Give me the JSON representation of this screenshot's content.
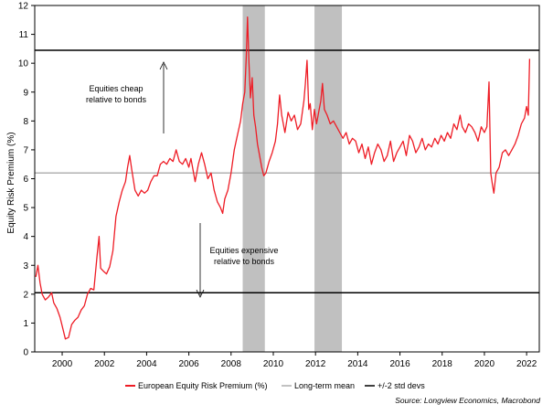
{
  "chart_data": {
    "type": "line",
    "ylabel": "Equity Risk Premium (%)",
    "xlabel": "",
    "xlim": [
      1998.7,
      2022.6
    ],
    "ylim": [
      0,
      12
    ],
    "yticks": [
      0,
      1,
      2,
      3,
      4,
      5,
      6,
      7,
      8,
      9,
      10,
      11,
      12
    ],
    "xticks": [
      "2000",
      "2002",
      "2004",
      "2006",
      "2008",
      "2010",
      "2012",
      "2014",
      "2016",
      "2018",
      "2020",
      "2022"
    ],
    "shaded_periods": [
      [
        2008.55,
        2009.6
      ],
      [
        2011.95,
        2013.25
      ]
    ],
    "reference_lines": {
      "long_term_mean": 6.2,
      "upper_2sd": 10.45,
      "lower_2sd": 2.05
    },
    "series": [
      {
        "name": "European Equity Risk Premium (%)",
        "color": "#ee1c25",
        "points": [
          [
            1998.75,
            2.6
          ],
          [
            1998.85,
            3.0
          ],
          [
            1998.95,
            2.4
          ],
          [
            1999.05,
            2.0
          ],
          [
            1999.2,
            1.8
          ],
          [
            1999.35,
            1.9
          ],
          [
            1999.5,
            2.05
          ],
          [
            1999.6,
            1.7
          ],
          [
            1999.75,
            1.5
          ],
          [
            1999.9,
            1.2
          ],
          [
            2000.05,
            0.75
          ],
          [
            2000.15,
            0.45
          ],
          [
            2000.3,
            0.5
          ],
          [
            2000.45,
            0.95
          ],
          [
            2000.6,
            1.1
          ],
          [
            2000.75,
            1.2
          ],
          [
            2000.9,
            1.45
          ],
          [
            2001.05,
            1.6
          ],
          [
            2001.2,
            2.0
          ],
          [
            2001.35,
            2.2
          ],
          [
            2001.5,
            2.15
          ],
          [
            2001.65,
            3.3
          ],
          [
            2001.75,
            4.0
          ],
          [
            2001.82,
            2.9
          ],
          [
            2001.95,
            2.8
          ],
          [
            2002.1,
            2.7
          ],
          [
            2002.25,
            2.95
          ],
          [
            2002.4,
            3.5
          ],
          [
            2002.55,
            4.7
          ],
          [
            2002.7,
            5.2
          ],
          [
            2002.85,
            5.6
          ],
          [
            2003.0,
            5.9
          ],
          [
            2003.1,
            6.4
          ],
          [
            2003.2,
            6.8
          ],
          [
            2003.3,
            6.3
          ],
          [
            2003.45,
            5.6
          ],
          [
            2003.6,
            5.4
          ],
          [
            2003.75,
            5.6
          ],
          [
            2003.9,
            5.5
          ],
          [
            2004.05,
            5.6
          ],
          [
            2004.2,
            5.9
          ],
          [
            2004.35,
            6.1
          ],
          [
            2004.5,
            6.1
          ],
          [
            2004.65,
            6.5
          ],
          [
            2004.8,
            6.6
          ],
          [
            2004.95,
            6.5
          ],
          [
            2005.1,
            6.7
          ],
          [
            2005.25,
            6.6
          ],
          [
            2005.4,
            7.0
          ],
          [
            2005.55,
            6.6
          ],
          [
            2005.7,
            6.5
          ],
          [
            2005.85,
            6.7
          ],
          [
            2006.0,
            6.4
          ],
          [
            2006.1,
            6.7
          ],
          [
            2006.2,
            6.3
          ],
          [
            2006.3,
            5.9
          ],
          [
            2006.45,
            6.5
          ],
          [
            2006.6,
            6.9
          ],
          [
            2006.75,
            6.5
          ],
          [
            2006.9,
            6.0
          ],
          [
            2007.05,
            6.2
          ],
          [
            2007.2,
            5.6
          ],
          [
            2007.35,
            5.2
          ],
          [
            2007.5,
            5.0
          ],
          [
            2007.6,
            4.8
          ],
          [
            2007.7,
            5.3
          ],
          [
            2007.85,
            5.6
          ],
          [
            2008.0,
            6.2
          ],
          [
            2008.15,
            7.0
          ],
          [
            2008.3,
            7.5
          ],
          [
            2008.45,
            8.0
          ],
          [
            2008.55,
            8.6
          ],
          [
            2008.65,
            9.0
          ],
          [
            2008.72,
            10.2
          ],
          [
            2008.78,
            11.6
          ],
          [
            2008.85,
            10.0
          ],
          [
            2008.92,
            8.8
          ],
          [
            2009.0,
            9.5
          ],
          [
            2009.08,
            8.2
          ],
          [
            2009.16,
            7.8
          ],
          [
            2009.25,
            7.2
          ],
          [
            2009.35,
            6.8
          ],
          [
            2009.45,
            6.4
          ],
          [
            2009.55,
            6.1
          ],
          [
            2009.65,
            6.2
          ],
          [
            2009.8,
            6.6
          ],
          [
            2009.95,
            6.9
          ],
          [
            2010.1,
            7.3
          ],
          [
            2010.2,
            7.9
          ],
          [
            2010.3,
            8.9
          ],
          [
            2010.4,
            8.2
          ],
          [
            2010.55,
            7.6
          ],
          [
            2010.7,
            8.3
          ],
          [
            2010.85,
            8.0
          ],
          [
            2011.0,
            8.2
          ],
          [
            2011.15,
            7.7
          ],
          [
            2011.3,
            7.9
          ],
          [
            2011.45,
            8.7
          ],
          [
            2011.52,
            9.3
          ],
          [
            2011.6,
            10.1
          ],
          [
            2011.68,
            8.4
          ],
          [
            2011.75,
            8.6
          ],
          [
            2011.85,
            7.7
          ],
          [
            2011.95,
            8.4
          ],
          [
            2012.05,
            7.9
          ],
          [
            2012.15,
            8.3
          ],
          [
            2012.25,
            8.7
          ],
          [
            2012.33,
            9.3
          ],
          [
            2012.42,
            8.4
          ],
          [
            2012.55,
            8.2
          ],
          [
            2012.7,
            7.9
          ],
          [
            2012.85,
            8.0
          ],
          [
            2013.0,
            7.8
          ],
          [
            2013.15,
            7.6
          ],
          [
            2013.3,
            7.4
          ],
          [
            2013.45,
            7.6
          ],
          [
            2013.6,
            7.2
          ],
          [
            2013.75,
            7.4
          ],
          [
            2013.9,
            7.3
          ],
          [
            2014.05,
            6.9
          ],
          [
            2014.2,
            7.2
          ],
          [
            2014.35,
            6.7
          ],
          [
            2014.5,
            7.1
          ],
          [
            2014.65,
            6.5
          ],
          [
            2014.8,
            6.9
          ],
          [
            2014.95,
            7.2
          ],
          [
            2015.1,
            7.0
          ],
          [
            2015.25,
            6.6
          ],
          [
            2015.4,
            6.8
          ],
          [
            2015.55,
            7.3
          ],
          [
            2015.7,
            6.6
          ],
          [
            2015.85,
            6.9
          ],
          [
            2016.0,
            7.1
          ],
          [
            2016.15,
            7.3
          ],
          [
            2016.3,
            6.8
          ],
          [
            2016.45,
            7.5
          ],
          [
            2016.6,
            7.3
          ],
          [
            2016.75,
            6.9
          ],
          [
            2016.9,
            7.1
          ],
          [
            2017.05,
            7.4
          ],
          [
            2017.2,
            7.0
          ],
          [
            2017.35,
            7.2
          ],
          [
            2017.5,
            7.1
          ],
          [
            2017.65,
            7.4
          ],
          [
            2017.8,
            7.2
          ],
          [
            2017.95,
            7.5
          ],
          [
            2018.1,
            7.3
          ],
          [
            2018.25,
            7.6
          ],
          [
            2018.4,
            7.4
          ],
          [
            2018.55,
            7.9
          ],
          [
            2018.7,
            7.7
          ],
          [
            2018.85,
            8.2
          ],
          [
            2018.95,
            7.8
          ],
          [
            2019.1,
            7.6
          ],
          [
            2019.25,
            7.9
          ],
          [
            2019.4,
            7.8
          ],
          [
            2019.55,
            7.6
          ],
          [
            2019.7,
            7.3
          ],
          [
            2019.85,
            7.8
          ],
          [
            2020.0,
            7.6
          ],
          [
            2020.12,
            7.8
          ],
          [
            2020.22,
            9.35
          ],
          [
            2020.3,
            6.2
          ],
          [
            2020.38,
            5.8
          ],
          [
            2020.45,
            5.5
          ],
          [
            2020.55,
            6.2
          ],
          [
            2020.7,
            6.4
          ],
          [
            2020.85,
            6.9
          ],
          [
            2021.0,
            7.0
          ],
          [
            2021.15,
            6.8
          ],
          [
            2021.3,
            7.0
          ],
          [
            2021.45,
            7.2
          ],
          [
            2021.6,
            7.5
          ],
          [
            2021.75,
            7.9
          ],
          [
            2021.9,
            8.1
          ],
          [
            2022.0,
            8.5
          ],
          [
            2022.08,
            8.2
          ],
          [
            2022.14,
            10.15
          ]
        ]
      },
      {
        "name": "Long-term mean",
        "color": "#999999"
      },
      {
        "name": "+/-2 std devs",
        "color": "#000000"
      }
    ],
    "annotations": [
      {
        "id": "cheap",
        "lines": [
          "Equities cheap",
          "relative to bonds"
        ],
        "arrow": "up"
      },
      {
        "id": "expensive",
        "lines": [
          "Equities expensive",
          "relative to bonds"
        ],
        "arrow": "down"
      }
    ],
    "source": "Source: Longview Economics, Macrobond"
  }
}
